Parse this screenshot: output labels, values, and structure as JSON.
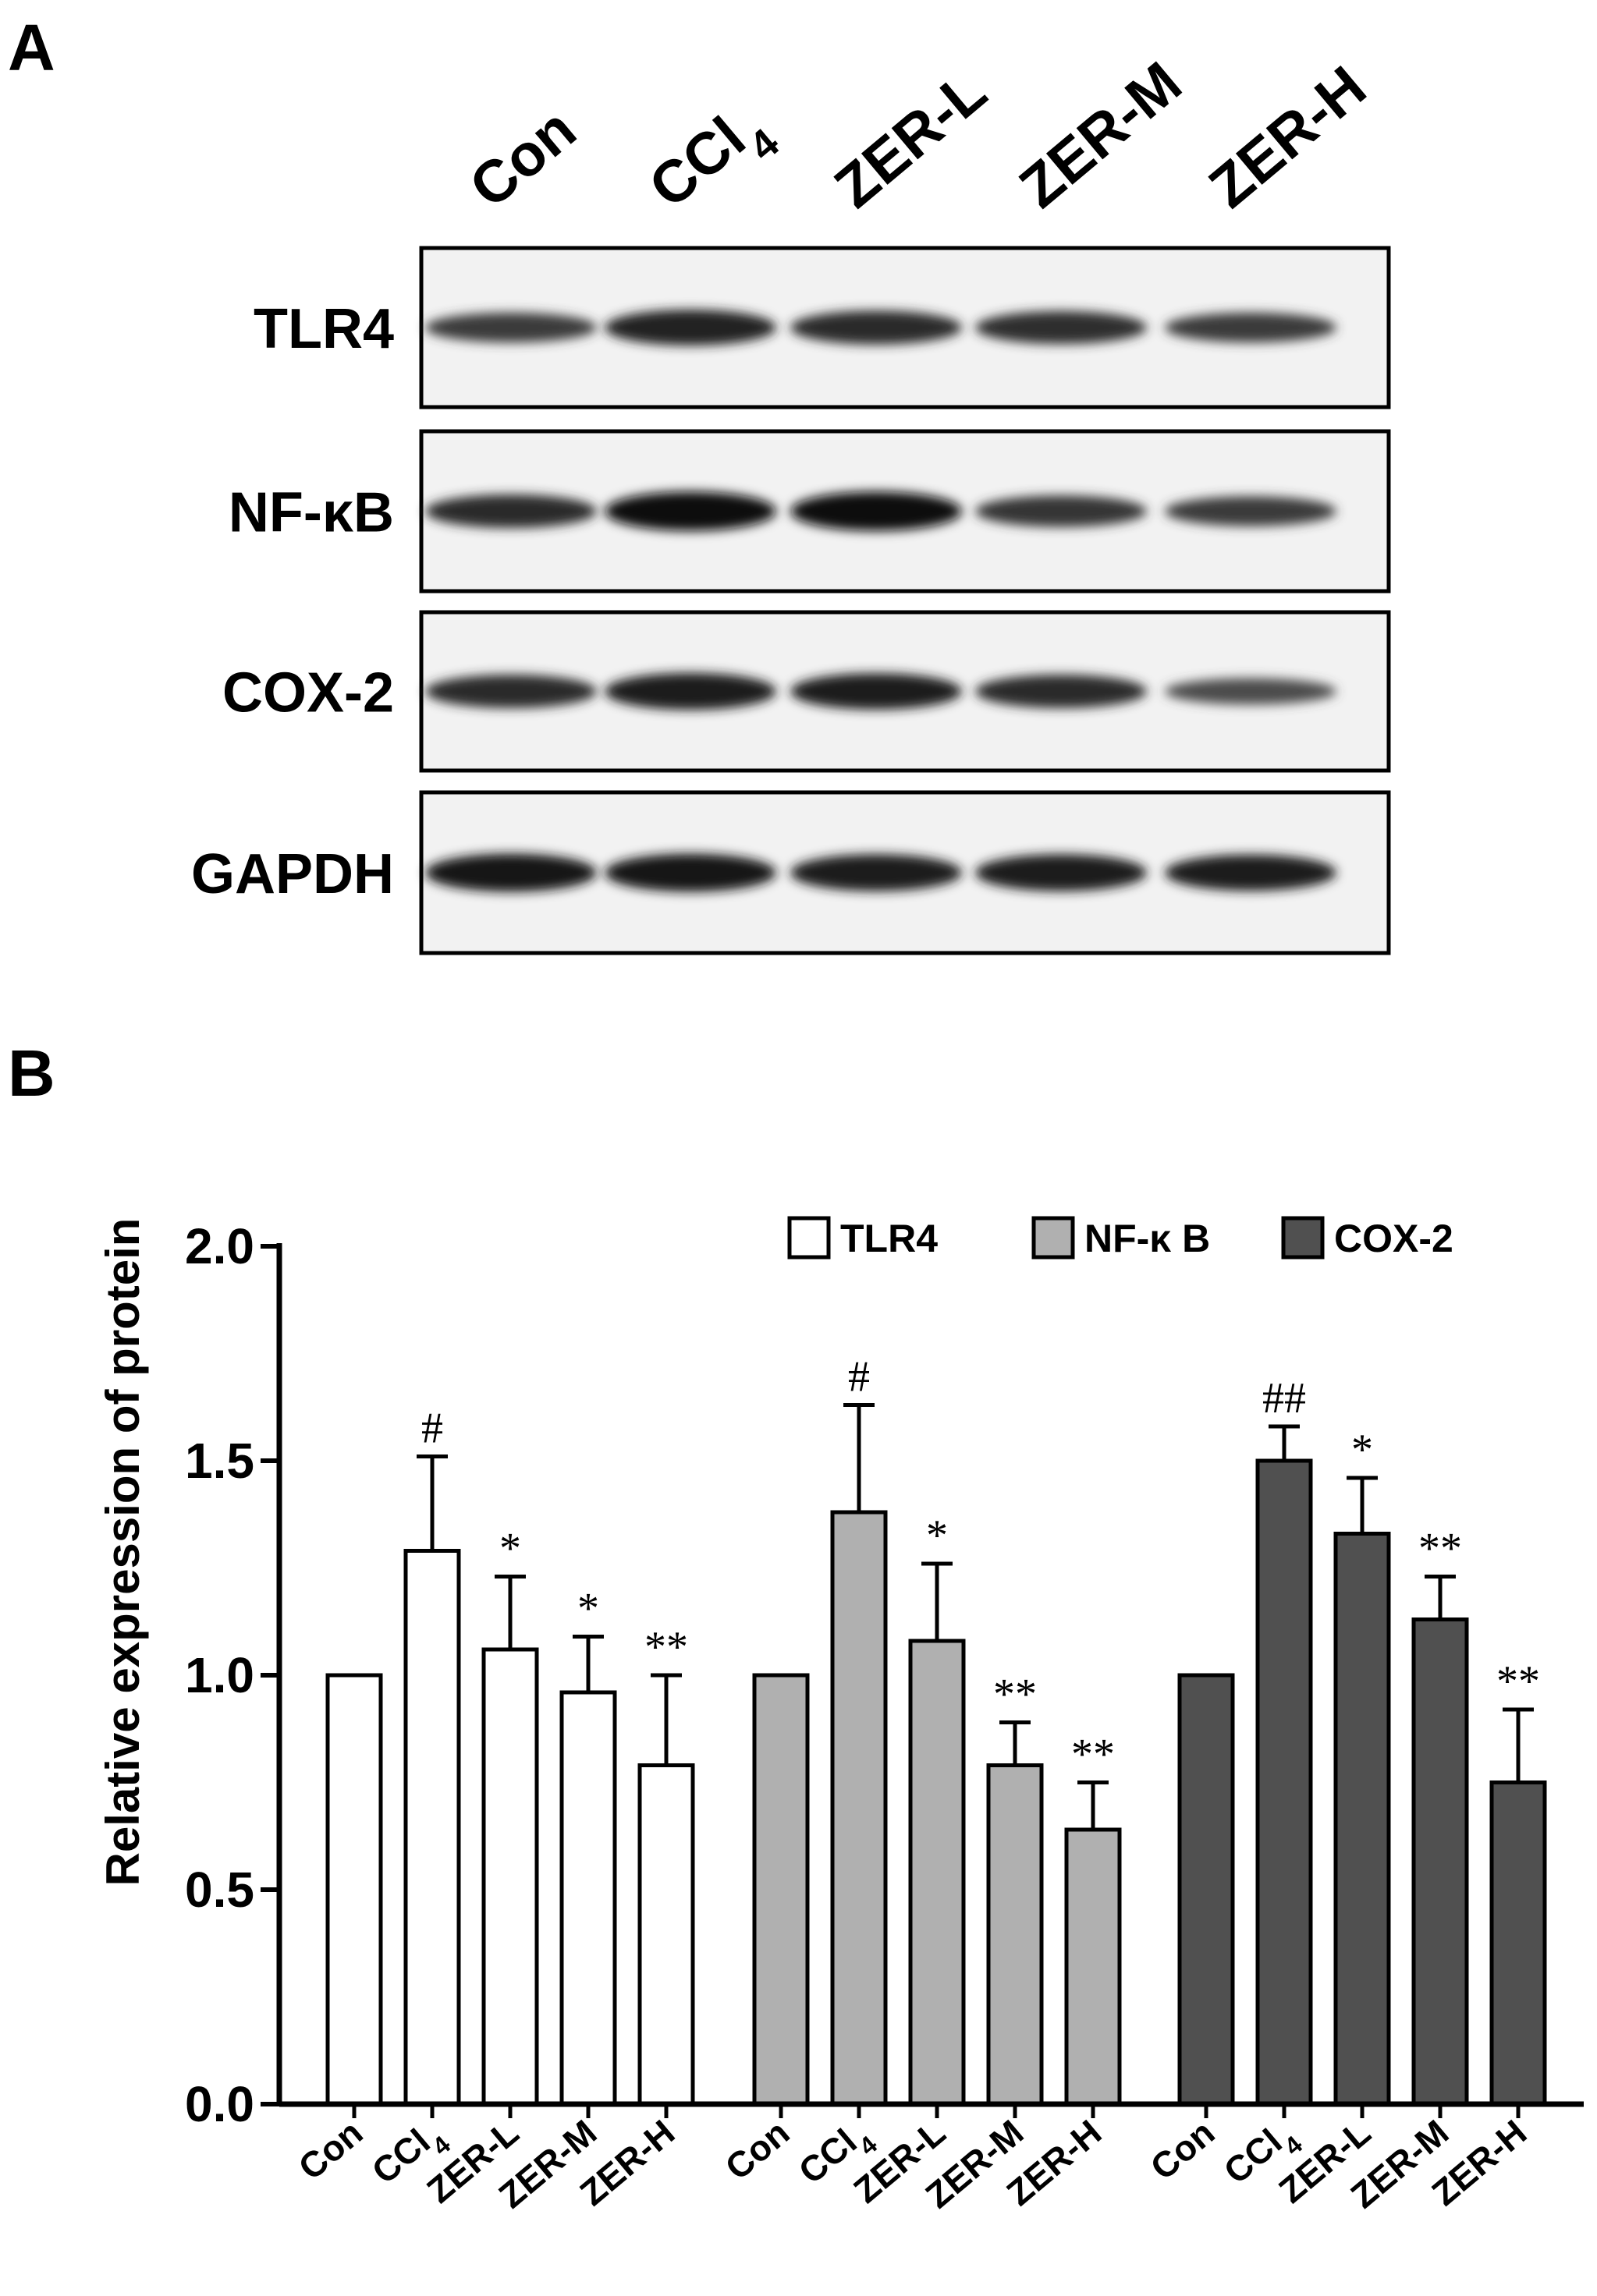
{
  "panel_labels": {
    "a": "A",
    "b": "B"
  },
  "blot": {
    "lanes": [
      "Con",
      "CCl4",
      "ZER-L",
      "ZER-M",
      "ZER-H"
    ],
    "rows": [
      {
        "label": "TLR4",
        "intensity": [
          0.55,
          0.8,
          0.72,
          0.68,
          0.55
        ]
      },
      {
        "label": "NF-κB",
        "intensity": [
          0.7,
          0.95,
          0.95,
          0.62,
          0.55
        ]
      },
      {
        "label": "COX-2",
        "intensity": [
          0.7,
          0.85,
          0.82,
          0.7,
          0.4
        ]
      },
      {
        "label": "GAPDH",
        "intensity": [
          0.9,
          0.9,
          0.85,
          0.85,
          0.82
        ]
      }
    ]
  },
  "colors": {
    "TLR4": "#ffffff",
    "NF-κB": "#b0b0b0",
    "COX-2": "#505050",
    "stroke": "#000000"
  },
  "chart_data": {
    "type": "bar",
    "title": "",
    "xlabel": "",
    "ylabel": "Relative expression of protein",
    "ylim": [
      0,
      2.0
    ],
    "yticks": [
      "0.0",
      "0.5",
      "1.0",
      "1.5",
      "2.0"
    ],
    "categories": [
      "Con",
      "CCl4",
      "ZER-L",
      "ZER-M",
      "ZER-H"
    ],
    "legend_position": "top-right",
    "series": [
      {
        "name": "TLR4",
        "values": [
          1.0,
          1.29,
          1.06,
          0.96,
          0.79
        ],
        "errors": [
          0,
          0.22,
          0.17,
          0.13,
          0.21
        ],
        "annotations": [
          "",
          "#",
          "*",
          "*",
          "**"
        ]
      },
      {
        "name": "NF-κ B",
        "values": [
          1.0,
          1.38,
          1.08,
          0.79,
          0.64
        ],
        "errors": [
          0,
          0.25,
          0.18,
          0.1,
          0.11
        ],
        "annotations": [
          "",
          "#",
          "*",
          "**",
          "**"
        ]
      },
      {
        "name": "COX-2",
        "values": [
          1.0,
          1.5,
          1.33,
          1.13,
          0.75
        ],
        "errors": [
          0,
          0.08,
          0.13,
          0.1,
          0.17
        ],
        "annotations": [
          "",
          "##",
          "*",
          "**",
          "**"
        ]
      }
    ]
  }
}
